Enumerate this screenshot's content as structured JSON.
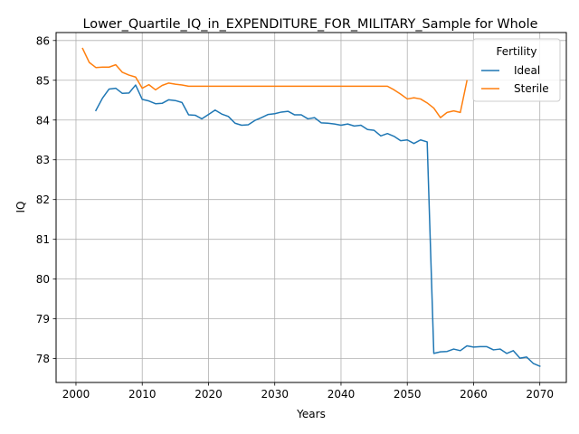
{
  "chart_data": {
    "type": "line",
    "title": "Lower_Quartile_IQ_in_EXPENDITURE_FOR_MILITARY_Sample for Whole",
    "xlabel": "Years",
    "ylabel": "IQ",
    "xlim": [
      1997,
      2074
    ],
    "ylim": [
      77.4,
      86.2
    ],
    "xticks": [
      2000,
      2010,
      2020,
      2030,
      2040,
      2050,
      2060,
      2070
    ],
    "yticks": [
      78,
      79,
      80,
      81,
      82,
      83,
      84,
      85,
      86
    ],
    "grid": true,
    "legend": {
      "title": "Fertility",
      "position": "top-right"
    },
    "series": [
      {
        "name": "Ideal",
        "color": "#1f77b4",
        "x": [
          2003,
          2004,
          2005,
          2006,
          2007,
          2008,
          2009,
          2010,
          2011,
          2012,
          2013,
          2014,
          2015,
          2016,
          2017,
          2018,
          2019,
          2020,
          2021,
          2022,
          2023,
          2024,
          2025,
          2026,
          2027,
          2028,
          2029,
          2030,
          2031,
          2032,
          2033,
          2034,
          2035,
          2036,
          2037,
          2038,
          2039,
          2040,
          2041,
          2042,
          2043,
          2044,
          2045,
          2046,
          2047,
          2048,
          2049,
          2050,
          2051,
          2052,
          2053,
          2054,
          2055,
          2056,
          2057,
          2058,
          2059,
          2060,
          2061,
          2062,
          2063,
          2064,
          2065,
          2066,
          2067,
          2068,
          2069,
          2070
        ],
        "values": [
          84.24,
          84.55,
          84.78,
          84.8,
          84.67,
          84.68,
          84.88,
          84.52,
          84.48,
          84.41,
          84.42,
          84.51,
          84.49,
          84.44,
          84.13,
          84.12,
          84.03,
          84.14,
          84.25,
          84.15,
          84.09,
          83.92,
          83.87,
          83.88,
          83.99,
          84.06,
          84.14,
          84.16,
          84.2,
          84.22,
          84.13,
          84.13,
          84.03,
          84.06,
          83.93,
          83.92,
          83.9,
          83.87,
          83.9,
          83.85,
          83.87,
          83.76,
          83.74,
          83.6,
          83.66,
          83.59,
          83.48,
          83.5,
          83.41,
          83.5,
          83.45,
          78.13,
          78.17,
          78.18,
          78.24,
          78.2,
          78.32,
          78.29,
          78.3,
          78.3,
          78.22,
          78.24,
          78.13,
          78.2,
          78.01,
          78.04,
          77.88,
          77.81
        ]
      },
      {
        "name": "Sterile",
        "color": "#ff7f0e",
        "x": [
          2001,
          2002,
          2003,
          2004,
          2005,
          2006,
          2007,
          2008,
          2009,
          2010,
          2011,
          2012,
          2013,
          2014,
          2015,
          2016,
          2017,
          2018,
          2019,
          2020,
          2021,
          2022,
          2023,
          2024,
          2025,
          2026,
          2027,
          2028,
          2029,
          2030,
          2031,
          2032,
          2033,
          2034,
          2035,
          2036,
          2037,
          2038,
          2039,
          2040,
          2041,
          2042,
          2043,
          2044,
          2045,
          2046,
          2047,
          2048,
          2049,
          2050,
          2051,
          2052,
          2053,
          2054,
          2055,
          2056,
          2057,
          2058,
          2059
        ],
        "values": [
          85.8,
          85.45,
          85.32,
          85.33,
          85.33,
          85.39,
          85.2,
          85.13,
          85.08,
          84.8,
          84.89,
          84.76,
          84.87,
          84.93,
          84.9,
          84.88,
          84.85,
          84.85,
          84.85,
          84.85,
          84.85,
          84.85,
          84.85,
          84.85,
          84.85,
          84.85,
          84.85,
          84.85,
          84.85,
          84.85,
          84.85,
          84.85,
          84.85,
          84.85,
          84.85,
          84.85,
          84.85,
          84.85,
          84.85,
          84.85,
          84.85,
          84.85,
          84.85,
          84.85,
          84.85,
          84.85,
          84.85,
          84.76,
          84.65,
          84.53,
          84.56,
          84.53,
          84.43,
          84.3,
          84.06,
          84.19,
          84.23,
          84.19,
          84.99
        ]
      }
    ]
  }
}
